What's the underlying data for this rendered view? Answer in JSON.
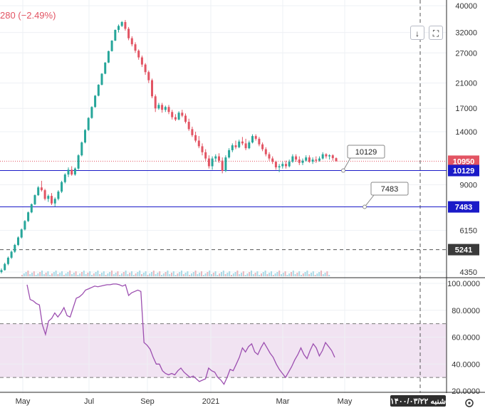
{
  "header": {
    "price_change": "280 (−2.49%)",
    "download_icon": "download-icon",
    "fullscreen_icon": "fullscreen-icon"
  },
  "colors": {
    "up": "#26a69a",
    "down": "#e25463",
    "rsi_line": "#9c4fb0",
    "rsi_band": "#f1e3f2",
    "hline_blue": "#1a1ac8",
    "last_price_badge": "#e25463",
    "hline_badge": "#1a1ac8",
    "level_badge": "#3a3a3a"
  },
  "footer": {
    "date_label": "شنبه ۱۴۰۰/۰۳/۲۲",
    "settings_icon": "gear-icon"
  },
  "chart_data": [
    {
      "type": "candlestick",
      "scale": "log",
      "ylim": [
        4350,
        40000
      ],
      "y_ticks": [
        4350,
        6150,
        9000,
        14000,
        17000,
        21000,
        27000,
        32000,
        40000
      ],
      "x_ticks": [
        "May",
        "Jul",
        "Sep",
        "2021",
        "Mar",
        "May"
      ],
      "last_price": 10950,
      "horizontal_lines": [
        {
          "value": 10129,
          "label": "10129",
          "style": "solid"
        },
        {
          "value": 7483,
          "label": "7483",
          "style": "solid"
        },
        {
          "value": 5241,
          "label": "5241",
          "style": "dashed"
        }
      ],
      "series": [
        {
          "values": [
            [
              4350,
              4480,
              4300,
              4420
            ],
            [
              4420,
              4700,
              4400,
              4650
            ],
            [
              4650,
              4950,
              4600,
              4900
            ],
            [
              4900,
              5200,
              4850,
              5150
            ],
            [
              5150,
              5500,
              5100,
              5450
            ],
            [
              5450,
              5850,
              5400,
              5800
            ],
            [
              5800,
              6250,
              5750,
              6200
            ],
            [
              6200,
              6700,
              6150,
              6650
            ],
            [
              6650,
              7200,
              6600,
              7150
            ],
            [
              7150,
              7700,
              7100,
              7650
            ],
            [
              7650,
              8300,
              7600,
              8250
            ],
            [
              8250,
              8900,
              8200,
              8800
            ],
            [
              8800,
              9300,
              8500,
              8600
            ],
            [
              8600,
              8700,
              7900,
              8000
            ],
            [
              8000,
              8300,
              7800,
              8200
            ],
            [
              8200,
              8400,
              7600,
              7700
            ],
            [
              7700,
              8100,
              7500,
              8000
            ],
            [
              8000,
              8600,
              7900,
              8500
            ],
            [
              8500,
              9300,
              8400,
              9200
            ],
            [
              9200,
              9900,
              9100,
              9800
            ],
            [
              9800,
              10400,
              9600,
              10200
            ],
            [
              10200,
              10500,
              9700,
              9800
            ],
            [
              9800,
              10400,
              9700,
              10300
            ],
            [
              10300,
              11600,
              10200,
              11500
            ],
            [
              11500,
              12900,
              11400,
              12800
            ],
            [
              12800,
              14300,
              12700,
              14200
            ],
            [
              14200,
              15800,
              14100,
              15700
            ],
            [
              15700,
              17300,
              15600,
              17200
            ],
            [
              17200,
              19000,
              17100,
              18900
            ],
            [
              18900,
              20800,
              18800,
              20700
            ],
            [
              20700,
              22800,
              20600,
              22700
            ],
            [
              22700,
              25000,
              22600,
              24900
            ],
            [
              24900,
              27500,
              24800,
              27400
            ],
            [
              27400,
              30000,
              27300,
              29900
            ],
            [
              29900,
              32800,
              29800,
              32700
            ],
            [
              32700,
              34200,
              32000,
              33800
            ],
            [
              33800,
              35200,
              33500,
              34900
            ],
            [
              34900,
              35500,
              32500,
              33000
            ],
            [
              33000,
              33500,
              30000,
              30500
            ],
            [
              30500,
              31000,
              28500,
              29000
            ],
            [
              29000,
              29500,
              27000,
              27500
            ],
            [
              27500,
              27800,
              25500,
              26000
            ],
            [
              26000,
              26400,
              24000,
              24500
            ],
            [
              24500,
              24800,
              22500,
              23000
            ],
            [
              23000,
              23300,
              21000,
              21500
            ],
            [
              21500,
              21800,
              18500,
              18800
            ],
            [
              18800,
              19100,
              16500,
              17000
            ],
            [
              17000,
              17800,
              16800,
              17500
            ],
            [
              17500,
              17800,
              16400,
              16800
            ],
            [
              16800,
              17400,
              16500,
              17200
            ],
            [
              17200,
              17500,
              16200,
              16500
            ],
            [
              16500,
              16800,
              15500,
              15800
            ],
            [
              15800,
              16200,
              15300,
              15500
            ],
            [
              15500,
              16600,
              15400,
              16400
            ],
            [
              16400,
              16800,
              15800,
              16000
            ],
            [
              16000,
              16300,
              15000,
              15200
            ],
            [
              15200,
              15600,
              14100,
              14300
            ],
            [
              14300,
              14600,
              13400,
              13600
            ],
            [
              13600,
              14000,
              12800,
              13000
            ],
            [
              13000,
              13500,
              12200,
              12400
            ],
            [
              12400,
              12700,
              11500,
              11800
            ],
            [
              11800,
              12100,
              11000,
              11200
            ],
            [
              11200,
              11500,
              10300,
              10500
            ],
            [
              10500,
              11400,
              10200,
              11200
            ],
            [
              11200,
              11600,
              10900,
              11400
            ],
            [
              11400,
              11700,
              10800,
              11000
            ],
            [
              11000,
              11300,
              9900,
              10100
            ],
            [
              10100,
              11500,
              10000,
              11300
            ],
            [
              11300,
              12200,
              11200,
              12000
            ],
            [
              12000,
              12700,
              11800,
              12500
            ],
            [
              12500,
              13000,
              12100,
              12300
            ],
            [
              12300,
              13100,
              12200,
              12900
            ],
            [
              12900,
              13400,
              12500,
              12700
            ],
            [
              12700,
              13200,
              12000,
              12200
            ],
            [
              12200,
              13000,
              12100,
              12800
            ],
            [
              12800,
              13700,
              12700,
              13500
            ],
            [
              13500,
              13700,
              13000,
              13200
            ],
            [
              13200,
              13400,
              12400,
              12600
            ],
            [
              12600,
              12800,
              11900,
              12100
            ],
            [
              12100,
              12300,
              11400,
              11600
            ],
            [
              11600,
              11800,
              11000,
              11200
            ],
            [
              11200,
              11400,
              10700,
              10900
            ],
            [
              10900,
              11000,
              10200,
              10400
            ],
            [
              10400,
              10700,
              10000,
              10500
            ],
            [
              10500,
              10900,
              10300,
              10700
            ],
            [
              10700,
              11000,
              10300,
              10500
            ],
            [
              10500,
              11100,
              10400,
              10900
            ],
            [
              10900,
              11600,
              10800,
              11400
            ],
            [
              11400,
              11600,
              10900,
              11100
            ],
            [
              11100,
              11400,
              10600,
              10800
            ],
            [
              10800,
              11200,
              10600,
              11000
            ],
            [
              11000,
              11500,
              10900,
              11300
            ],
            [
              11300,
              11500,
              10800,
              10900
            ],
            [
              10900,
              11300,
              10700,
              11100
            ],
            [
              11100,
              11400,
              10800,
              11000
            ],
            [
              11000,
              11400,
              10900,
              11200
            ],
            [
              11200,
              11800,
              11100,
              11600
            ],
            [
              11600,
              11700,
              11200,
              11400
            ],
            [
              11400,
              11600,
              11100,
              11500
            ],
            [
              11500,
              11600,
              11000,
              11230
            ],
            [
              11230,
              11300,
              10900,
              10950
            ]
          ]
        }
      ]
    },
    {
      "type": "line",
      "title": "",
      "ylim": [
        20,
        100
      ],
      "y_ticks": [
        20,
        40,
        60,
        80,
        100
      ],
      "band": [
        30,
        70
      ],
      "series": [
        {
          "values": [
            99,
            88,
            87,
            85,
            84,
            69,
            62,
            72,
            74,
            78,
            75,
            78,
            82,
            76,
            75,
            82,
            89,
            90,
            92,
            95,
            96,
            97,
            98,
            97.5,
            98,
            98.5,
            99,
            99,
            99.5,
            99.5,
            99,
            98,
            99,
            91,
            93,
            94,
            95,
            94,
            56,
            54,
            51,
            45,
            40,
            40,
            35,
            33,
            32,
            33,
            32,
            35,
            37,
            34,
            32,
            30,
            31,
            29,
            27,
            28,
            29,
            37,
            35,
            34,
            30,
            28,
            25,
            30,
            36,
            35,
            40,
            45,
            52,
            49,
            53,
            55,
            49,
            47,
            52,
            56,
            52,
            48,
            45,
            40,
            36,
            33,
            30,
            34,
            38,
            43,
            47,
            52,
            47,
            44,
            50,
            55,
            52,
            46,
            50,
            56,
            53,
            50,
            45
          ]
        }
      ]
    }
  ]
}
